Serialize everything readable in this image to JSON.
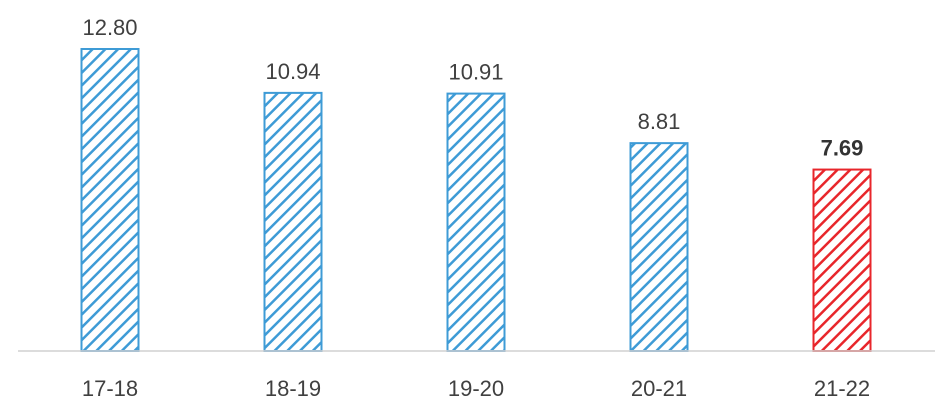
{
  "chart_data": {
    "type": "bar",
    "categories": [
      "17-18",
      "18-19",
      "19-20",
      "20-21",
      "21-22"
    ],
    "values": [
      12.8,
      10.94,
      10.91,
      8.81,
      7.69
    ],
    "value_labels": [
      "12.80",
      "10.94",
      "10.91",
      "8.81",
      "7.69"
    ],
    "highlight_index": 4,
    "ylim": [
      0,
      13.5
    ],
    "grid": false,
    "legend": "none",
    "bar_fill": "hatched",
    "colors": {
      "default_bar": "#3e9bd6",
      "highlight_bar": "#e8262b",
      "axis_line": "#d0d0d0",
      "text": "#404040"
    }
  }
}
